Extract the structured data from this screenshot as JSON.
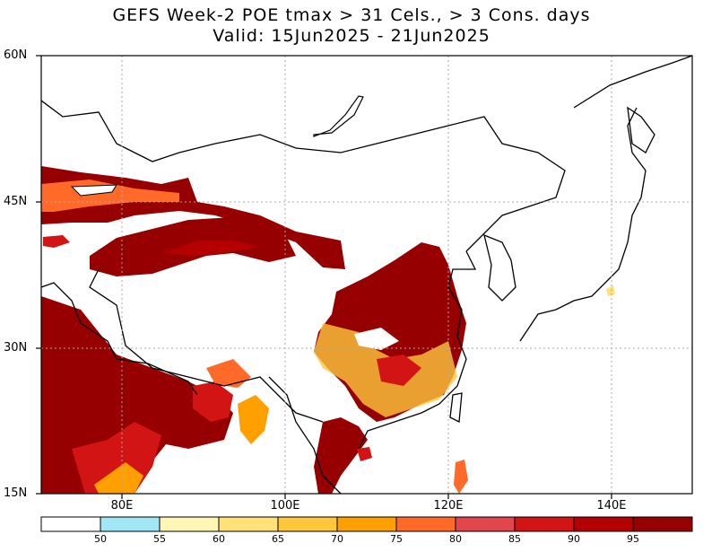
{
  "title": {
    "line1": "GEFS Week-2 POE tmax > 31 Cels., > 3 Cons. days",
    "line2": "Valid: 15Jun2025 - 21Jun2025"
  },
  "axes": {
    "lat_labels": [
      "60N",
      "45N",
      "30N",
      "15N"
    ],
    "lon_labels": [
      "80E",
      "100E",
      "120E",
      "140E"
    ]
  },
  "colorbar": {
    "labels": [
      "50",
      "55",
      "60",
      "65",
      "70",
      "75",
      "80",
      "85",
      "90",
      "95"
    ],
    "colors": [
      "#ffffff",
      "#a0e6f5",
      "#fff5b4",
      "#ffe178",
      "#ffc83c",
      "#ff9f00",
      "#ff6a28",
      "#e1464b",
      "#d21414",
      "#b40000",
      "#960000"
    ]
  },
  "colors": {
    "map_background": "#ffffff",
    "coast": "#000000",
    "grid": "#aaaaaa"
  }
}
